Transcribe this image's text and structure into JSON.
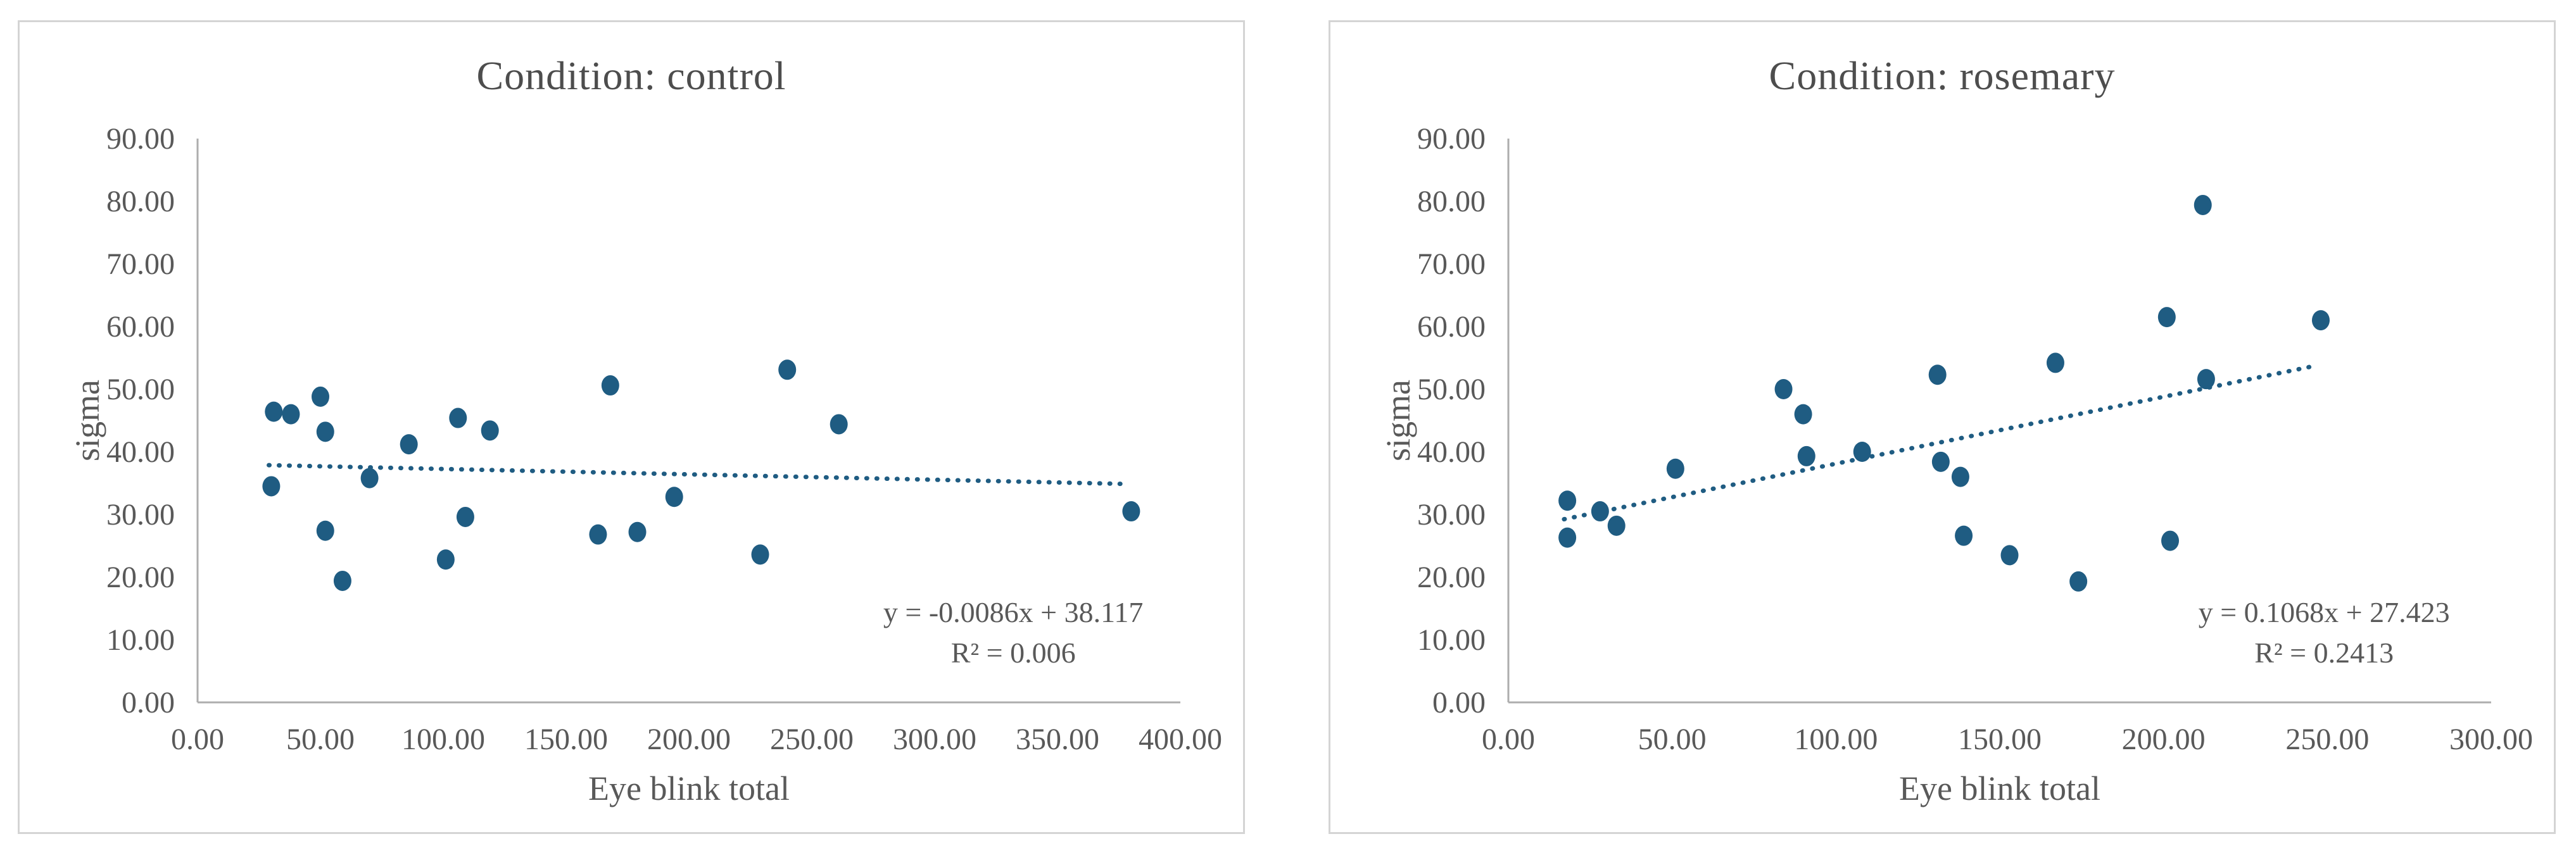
{
  "page": {
    "background": "#ffffff"
  },
  "colors": {
    "marker": "#1f5c82",
    "trendline": "#1f5c82",
    "title_text": "#4d4d4d",
    "label_text": "#595959",
    "axis_line": "#adadad",
    "panel_border": "#d4d4d4"
  },
  "chart_data": [
    {
      "type": "scatter",
      "title": "Condition: control",
      "xlabel": "Eye blink total",
      "ylabel": "sigma",
      "xlim": [
        0,
        400
      ],
      "ylim": [
        0,
        90
      ],
      "grid": false,
      "legend": "none",
      "x_tick_values": [
        0,
        50,
        100,
        150,
        200,
        250,
        300,
        350,
        400
      ],
      "x_tick_labels": [
        "0.00",
        "50.00",
        "100.00",
        "150.00",
        "200.00",
        "250.00",
        "300.00",
        "350.00",
        "400.00"
      ],
      "y_tick_values": [
        0,
        10,
        20,
        30,
        40,
        50,
        60,
        70,
        80,
        90
      ],
      "y_tick_labels": [
        "0.00",
        "10.00",
        "20.00",
        "30.00",
        "40.00",
        "50.00",
        "60.00",
        "70.00",
        "80.00",
        "90.00"
      ],
      "points": [
        [
          30,
          34.5
        ],
        [
          31,
          46.4
        ],
        [
          38,
          46.0
        ],
        [
          50,
          48.8
        ],
        [
          52,
          43.2
        ],
        [
          52,
          27.4
        ],
        [
          59,
          19.4
        ],
        [
          70,
          35.8
        ],
        [
          86,
          41.2
        ],
        [
          101,
          22.8
        ],
        [
          106,
          45.4
        ],
        [
          109,
          29.6
        ],
        [
          119,
          43.4
        ],
        [
          163,
          26.8
        ],
        [
          168,
          50.6
        ],
        [
          179,
          27.2
        ],
        [
          194,
          32.8
        ],
        [
          229,
          23.6
        ],
        [
          240,
          53.1
        ],
        [
          261,
          44.4
        ],
        [
          380,
          30.5
        ]
      ],
      "trend": {
        "slope": -0.0086,
        "intercept": 38.117,
        "x_start": 29,
        "x_end": 378,
        "equation_label": "y = -0.0086x + 38.117",
        "r2_label": "R² = 0.006"
      }
    },
    {
      "type": "scatter",
      "title": "Condition: rosemary",
      "xlabel": "Eye blink total",
      "ylabel": "sigma",
      "xlim": [
        0,
        300
      ],
      "ylim": [
        0,
        90
      ],
      "grid": false,
      "legend": "none",
      "x_tick_values": [
        0,
        50,
        100,
        150,
        200,
        250,
        300
      ],
      "x_tick_labels": [
        "0.00",
        "50.00",
        "100.00",
        "150.00",
        "200.00",
        "250.00",
        "300.00"
      ],
      "y_tick_values": [
        0,
        10,
        20,
        30,
        40,
        50,
        60,
        70,
        80,
        90
      ],
      "y_tick_labels": [
        "0.00",
        "10.00",
        "20.00",
        "30.00",
        "40.00",
        "50.00",
        "60.00",
        "70.00",
        "80.00",
        "90.00"
      ],
      "points": [
        [
          18,
          32.2
        ],
        [
          18,
          26.3
        ],
        [
          28,
          30.5
        ],
        [
          33,
          28.2
        ],
        [
          51,
          37.3
        ],
        [
          84,
          50.0
        ],
        [
          90,
          46.0
        ],
        [
          91,
          39.3
        ],
        [
          108,
          40.0
        ],
        [
          131,
          52.3
        ],
        [
          132,
          38.4
        ],
        [
          138,
          36.0
        ],
        [
          139,
          26.6
        ],
        [
          153,
          23.5
        ],
        [
          167,
          54.2
        ],
        [
          174,
          19.3
        ],
        [
          201,
          61.5
        ],
        [
          202,
          25.8
        ],
        [
          212,
          79.4
        ],
        [
          213,
          51.6
        ],
        [
          248,
          61.0
        ]
      ],
      "trend": {
        "slope": 0.1068,
        "intercept": 27.423,
        "x_start": 17,
        "x_end": 246,
        "equation_label": "y = 0.1068x + 27.423",
        "r2_label": "R² = 0.2413"
      }
    }
  ]
}
